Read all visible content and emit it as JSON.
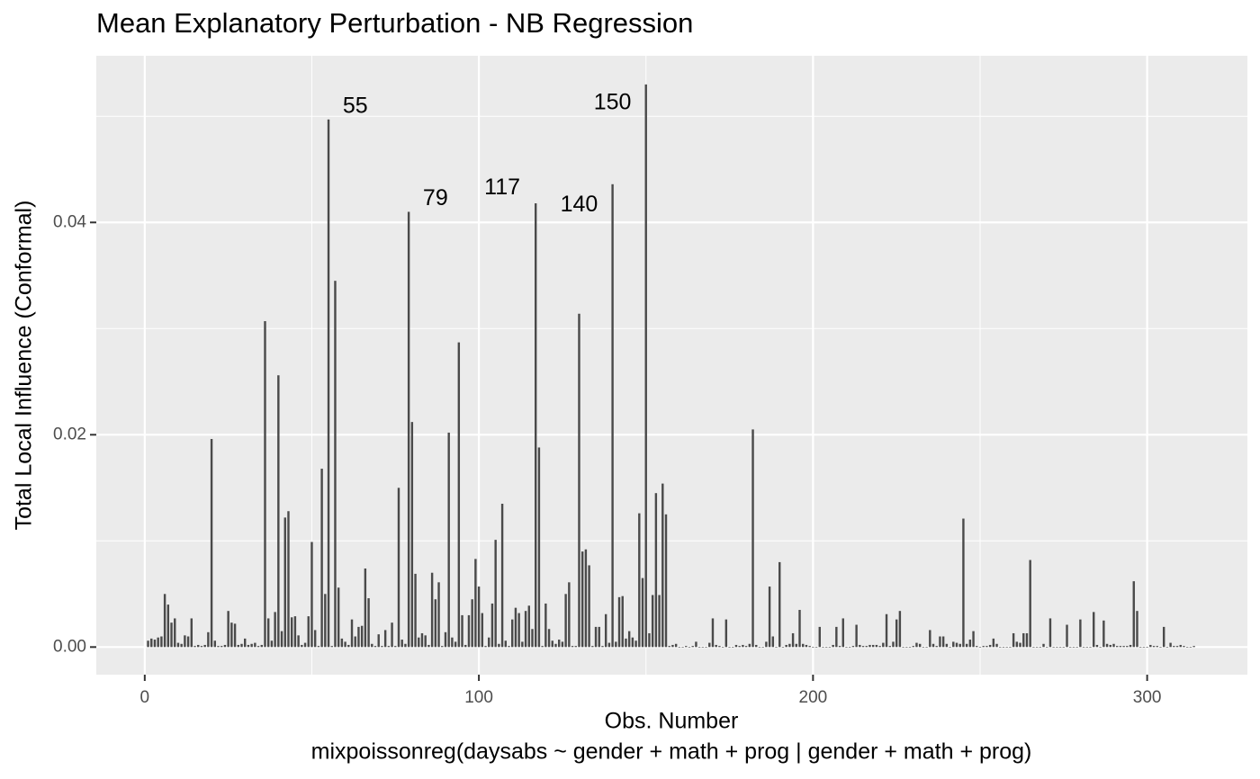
{
  "chart_data": {
    "type": "bar",
    "title": "Mean Explanatory Perturbation - NB Regression",
    "xlabel": "Obs. Number",
    "caption": "mixpoissonreg(daysabs ~ gender + math + prog | gender + math + prog)",
    "ylabel": "Total Local Influence (Conformal)",
    "color": "#4a4a4a",
    "grid": true,
    "xlim": [
      -14.5,
      330
    ],
    "ylim": [
      -0.0026,
      0.0557
    ],
    "xticks": [
      0,
      100,
      200,
      300
    ],
    "xminor": [
      50,
      150,
      250
    ],
    "yticks": [
      {
        "value": 0,
        "label": "0.00"
      },
      {
        "value": 0.02,
        "label": "0.02"
      },
      {
        "value": 0.04,
        "label": "0.04"
      }
    ],
    "yminor": [
      0.01,
      0.03,
      0.05
    ],
    "annotations": [
      {
        "text": "55",
        "x": 63,
        "y": 0.0509
      },
      {
        "text": "79",
        "x": 87,
        "y": 0.0422
      },
      {
        "text": "117",
        "x": 107,
        "y": 0.0432
      },
      {
        "text": "140",
        "x": 130,
        "y": 0.0416
      },
      {
        "text": "150",
        "x": 140,
        "y": 0.0512
      }
    ],
    "x": [
      1,
      2,
      3,
      4,
      5,
      6,
      7,
      8,
      9,
      10,
      11,
      12,
      13,
      14,
      15,
      16,
      17,
      18,
      19,
      20,
      21,
      22,
      23,
      24,
      25,
      26,
      27,
      28,
      29,
      30,
      31,
      32,
      33,
      34,
      35,
      36,
      37,
      38,
      39,
      40,
      41,
      42,
      43,
      44,
      45,
      46,
      47,
      48,
      49,
      50,
      51,
      52,
      53,
      54,
      55,
      56,
      57,
      58,
      59,
      60,
      61,
      62,
      63,
      64,
      65,
      66,
      67,
      68,
      69,
      70,
      71,
      72,
      73,
      74,
      75,
      76,
      77,
      78,
      79,
      80,
      81,
      82,
      83,
      84,
      85,
      86,
      87,
      88,
      89,
      90,
      91,
      92,
      93,
      94,
      95,
      96,
      97,
      98,
      99,
      100,
      101,
      102,
      103,
      104,
      105,
      106,
      107,
      108,
      109,
      110,
      111,
      112,
      113,
      114,
      115,
      116,
      117,
      118,
      119,
      120,
      121,
      122,
      123,
      124,
      125,
      126,
      127,
      128,
      129,
      130,
      131,
      132,
      133,
      134,
      135,
      136,
      137,
      138,
      139,
      140,
      141,
      142,
      143,
      144,
      145,
      146,
      147,
      148,
      149,
      150,
      151,
      152,
      153,
      154,
      155,
      156,
      157,
      158,
      159,
      160,
      161,
      162,
      163,
      164,
      165,
      166,
      167,
      168,
      169,
      170,
      171,
      172,
      173,
      174,
      175,
      176,
      177,
      178,
      179,
      180,
      181,
      182,
      183,
      184,
      185,
      186,
      187,
      188,
      189,
      190,
      191,
      192,
      193,
      194,
      195,
      196,
      197,
      198,
      199,
      200,
      201,
      202,
      203,
      204,
      205,
      206,
      207,
      208,
      209,
      210,
      211,
      212,
      213,
      214,
      215,
      216,
      217,
      218,
      219,
      220,
      221,
      222,
      223,
      224,
      225,
      226,
      227,
      228,
      229,
      230,
      231,
      232,
      233,
      234,
      235,
      236,
      237,
      238,
      239,
      240,
      241,
      242,
      243,
      244,
      245,
      246,
      247,
      248,
      249,
      250,
      251,
      252,
      253,
      254,
      255,
      256,
      257,
      258,
      259,
      260,
      261,
      262,
      263,
      264,
      265,
      266,
      267,
      268,
      269,
      270,
      271,
      272,
      273,
      274,
      275,
      276,
      277,
      278,
      279,
      280,
      281,
      282,
      283,
      284,
      285,
      286,
      287,
      288,
      289,
      290,
      291,
      292,
      293,
      294,
      295,
      296,
      297,
      298,
      299,
      300,
      301,
      302,
      303,
      304,
      305,
      306,
      307,
      308,
      309,
      310,
      311,
      312,
      313,
      314
    ],
    "values": [
      0.0006,
      0.0008,
      0.0007,
      0.0009,
      0.001,
      0.005,
      0.004,
      0.0023,
      0.0027,
      0.0004,
      0.0003,
      0.0011,
      0.001,
      0.0027,
      0.0001,
      0.0002,
      0.0001,
      0.0002,
      0.0014,
      0.0196,
      0.0006,
      0.0001,
      0.0001,
      0.0002,
      0.0034,
      0.0023,
      0.0022,
      0.0002,
      0.0003,
      0.0008,
      0.0002,
      0.0003,
      0.0004,
      0.0001,
      0.0002,
      0.0307,
      0.0027,
      0.0006,
      0.0033,
      0.0256,
      0.0015,
      0.0122,
      0.0128,
      0.0028,
      0.0029,
      0.0011,
      0.0002,
      0.0004,
      0.0029,
      0.0099,
      0.0016,
      0.0001,
      0.0168,
      0.005,
      0.0497,
      0.0001,
      0.0345,
      0.0056,
      0.0008,
      0.0005,
      0.0002,
      0.0026,
      0.001,
      0.0019,
      0.002,
      0.0074,
      0.0046,
      0.0003,
      0.0001,
      0.0012,
      0.0001,
      0.0016,
      0.0001,
      0.0023,
      0.0001,
      0.015,
      0.0007,
      0.0003,
      0.041,
      0.0212,
      0.0069,
      0.0009,
      0.0013,
      0.0011,
      0.0002,
      0.007,
      0.0045,
      0.0061,
      0.0001,
      0.0014,
      0.0202,
      0.0009,
      0.0005,
      0.0287,
      0.003,
      0.0002,
      0.003,
      0.0045,
      0.0083,
      0.0057,
      0.0032,
      0.0001,
      0.0009,
      0.0041,
      0.0101,
      0.0003,
      0.0135,
      0.0006,
      0.0001,
      0.0026,
      0.0037,
      0.0032,
      0.0005,
      0.0034,
      0.0039,
      0.0017,
      0.0418,
      0.0188,
      0.0001,
      0.0041,
      0.0017,
      0.0006,
      0.0003,
      0.0007,
      0.0005,
      0.005,
      0.0061,
      0.0001,
      0.0001,
      0.0314,
      0.009,
      0.0092,
      0.0077,
      0.0001,
      0.0019,
      0.0019,
      0.0001,
      0.0031,
      0.0004,
      0.0436,
      0.0005,
      0.0047,
      0.0048,
      0.0008,
      0.0015,
      0.0009,
      0.0006,
      0.0126,
      0.0065,
      0.053,
      0.0013,
      0.0049,
      0.0145,
      0.0049,
      0.0154,
      0.0125,
      0.0001,
      0.0002,
      0.0003,
      0.0,
      0.0,
      0.0001,
      0.0,
      0.0001,
      0.0005,
      0.0,
      0.0,
      0.0,
      0.0004,
      0.0027,
      0.0002,
      0.0001,
      0.0,
      0.0026,
      0.0,
      0.0,
      0.0002,
      0.0001,
      0.0002,
      0.0001,
      0.0003,
      0.0205,
      0.0002,
      0.0,
      0.0,
      0.0005,
      0.0057,
      0.001,
      0.0,
      0.008,
      0.0,
      0.0002,
      0.0003,
      0.0013,
      0.0003,
      0.0035,
      0.0003,
      0.0002,
      0.0001,
      0.0,
      0.0,
      0.0019,
      0.0,
      0.0,
      0.0,
      0.0002,
      0.0019,
      0.0001,
      0.0027,
      0.0,
      0.0,
      0.0001,
      0.0021,
      0.0002,
      0.0001,
      0.0001,
      0.0002,
      0.0002,
      0.0002,
      0.0001,
      0.0004,
      0.0031,
      0.0001,
      0.0005,
      0.0026,
      0.0034,
      0.0,
      0.0,
      0.0,
      0.0001,
      0.0004,
      0.0003,
      0.0,
      0.0,
      0.0016,
      0.0003,
      0.0001,
      0.001,
      0.001,
      0.0003,
      0.0,
      0.0005,
      0.0004,
      0.0003,
      0.0121,
      0.0003,
      0.0007,
      0.0015,
      0.0001,
      0.0,
      0.0001,
      0.0001,
      0.0002,
      0.0008,
      0.0003,
      0.0,
      0.0,
      0.0,
      0.0,
      0.0013,
      0.0005,
      0.0004,
      0.0013,
      0.0013,
      0.0082,
      0.0,
      0.0,
      0.0,
      0.0003,
      0.0,
      0.0027,
      0.0,
      0.0,
      0.0,
      0.0,
      0.0021,
      0.0,
      0.0,
      0.0,
      0.0026,
      0.0,
      0.0,
      0.0,
      0.0033,
      0.0002,
      0.0,
      0.0025,
      0.0003,
      0.0002,
      0.0003,
      0.0001,
      0.0001,
      0.0001,
      0.0001,
      0.0002,
      0.0062,
      0.0034,
      0.0,
      0.0,
      0.0,
      0.0002,
      0.0001,
      0.0001,
      0.0,
      0.0019,
      0.0,
      0.0004,
      0.0001,
      0.0001,
      0.0002,
      0.0001,
      0.0,
      0.0,
      0.0001
    ]
  }
}
